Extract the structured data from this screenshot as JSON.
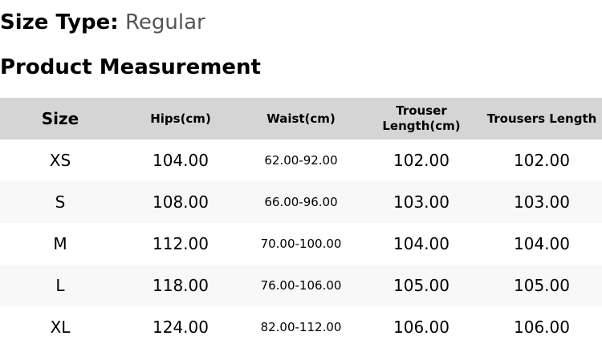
{
  "size_type": {
    "label": "Size Type:",
    "value": "Regular"
  },
  "title": "Product Measurement",
  "table": {
    "headers": [
      "Size",
      "Hips(cm)",
      "Waist(cm)",
      "Trouser Length(cm)",
      "Trousers Length"
    ],
    "rows": [
      [
        "XS",
        "104.00",
        "62.00-92.00",
        "102.00",
        "102.00"
      ],
      [
        "S",
        "108.00",
        "66.00-96.00",
        "103.00",
        "103.00"
      ],
      [
        "M",
        "112.00",
        "70.00-100.00",
        "104.00",
        "104.00"
      ],
      [
        "L",
        "118.00",
        "76.00-106.00",
        "105.00",
        "105.00"
      ],
      [
        "XL",
        "124.00",
        "82.00-112.00",
        "106.00",
        "106.00"
      ]
    ]
  },
  "colors": {
    "header_bg": "#d5d5d5",
    "alt_row_bg": "#f8f8f8",
    "value_text": "#555555"
  }
}
